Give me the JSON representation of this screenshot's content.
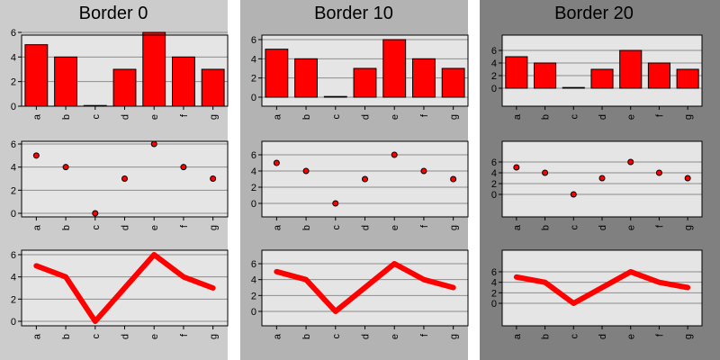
{
  "chart_data": {
    "type": "bar",
    "categories": [
      "a",
      "b",
      "c",
      "d",
      "e",
      "f",
      "g"
    ],
    "values": [
      5,
      4,
      0,
      3,
      6,
      4,
      3
    ],
    "y_ticks": [
      "0",
      "2",
      "4",
      "6"
    ],
    "series_color": "#ff0000",
    "plot_background": "#e5e5e5",
    "grid": true,
    "columns": [
      {
        "title": "Border 0",
        "panel_background": "#cccccc",
        "panels": [
          {
            "type": "bar",
            "ylim": [
              0,
              6
            ]
          },
          {
            "type": "scatter",
            "ylim": [
              0,
              6
            ]
          },
          {
            "type": "line",
            "ylim": [
              0,
              6
            ]
          }
        ]
      },
      {
        "title": "Border 10",
        "panel_background": "#b3b3b3",
        "panels": [
          {
            "type": "bar",
            "ylim": [
              -1.4,
              7.2
            ]
          },
          {
            "type": "scatter",
            "ylim": [
              -1.4,
              7.2
            ]
          },
          {
            "type": "line",
            "ylim": [
              -1.4,
              7.2
            ]
          }
        ]
      },
      {
        "title": "Border 20",
        "panel_background": "#808080",
        "panels": [
          {
            "type": "bar",
            "ylim": [
              -3.0,
              8.8
            ]
          },
          {
            "type": "scatter",
            "ylim": [
              -3.0,
              8.8
            ]
          },
          {
            "type": "line",
            "ylim": [
              -3.0,
              8.8
            ]
          }
        ]
      }
    ]
  }
}
